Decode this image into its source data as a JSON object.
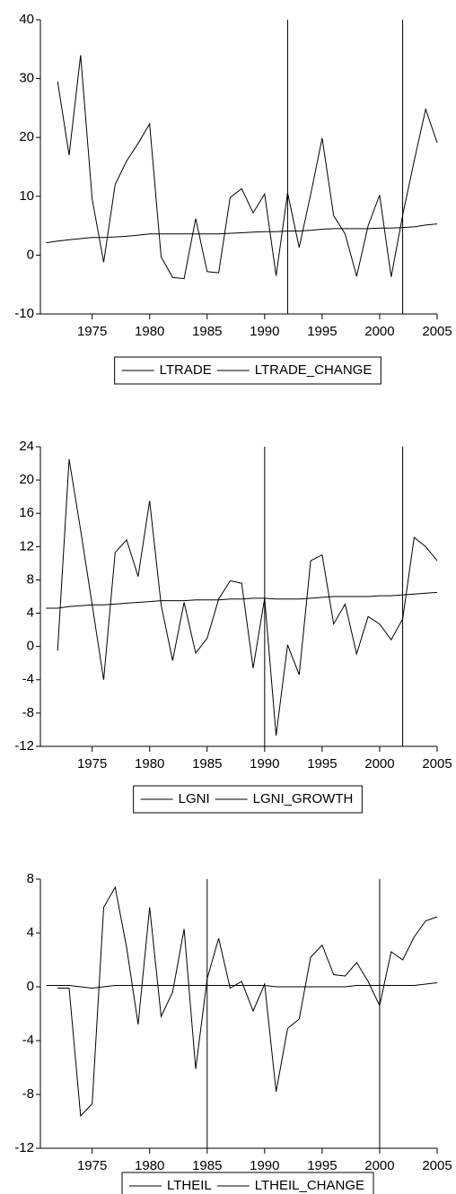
{
  "chart_data": [
    {
      "type": "line",
      "x": [
        1971,
        1972,
        1973,
        1974,
        1975,
        1976,
        1977,
        1978,
        1979,
        1980,
        1981,
        1982,
        1983,
        1984,
        1985,
        1986,
        1987,
        1988,
        1989,
        1990,
        1991,
        1992,
        1993,
        1994,
        1995,
        1996,
        1997,
        1998,
        1999,
        2000,
        2001,
        2002,
        2003,
        2004,
        2005
      ],
      "series": [
        {
          "name": "LTRADE",
          "color": "#000000",
          "values": [
            2.1,
            2.4,
            2.6,
            2.8,
            3.0,
            3.0,
            3.1,
            3.2,
            3.4,
            3.6,
            3.6,
            3.6,
            3.6,
            3.6,
            3.6,
            3.6,
            3.7,
            3.8,
            3.9,
            4.0,
            4.0,
            4.1,
            4.1,
            4.2,
            4.4,
            4.5,
            4.5,
            4.5,
            4.5,
            4.6,
            4.6,
            4.7,
            4.8,
            5.1,
            5.3
          ]
        },
        {
          "name": "LTRADE_CHANGE",
          "color": "#000000",
          "values": [
            null,
            29.5,
            17,
            34,
            9.5,
            -1.2,
            12,
            16,
            19,
            22.3,
            -0.3,
            -3.8,
            -4,
            6.2,
            -2.8,
            -3,
            9.8,
            11.3,
            7.2,
            10.4,
            -3.5,
            10.6,
            1.3,
            10.3,
            19.9,
            6.7,
            3.6,
            -3.6,
            5,
            10.2,
            -3.7,
            6.8,
            16,
            24.8,
            19.1
          ]
        }
      ],
      "xlim": [
        1970.5,
        2005
      ],
      "xticks": [
        1975,
        1980,
        1985,
        1990,
        1995,
        2000,
        2005
      ],
      "ylim": [
        -10,
        40
      ],
      "yticks": [
        -10,
        0,
        10,
        20,
        30,
        40
      ],
      "vlines": [
        1992,
        2002
      ]
    },
    {
      "type": "line",
      "x": [
        1971,
        1972,
        1973,
        1974,
        1975,
        1976,
        1977,
        1978,
        1979,
        1980,
        1981,
        1982,
        1983,
        1984,
        1985,
        1986,
        1987,
        1988,
        1989,
        1990,
        1991,
        1992,
        1993,
        1994,
        1995,
        1996,
        1997,
        1998,
        1999,
        2000,
        2001,
        2002,
        2003,
        2004,
        2005
      ],
      "series": [
        {
          "name": "LGNI",
          "color": "#000000",
          "values": [
            4.6,
            4.6,
            4.8,
            4.9,
            5.0,
            5.0,
            5.1,
            5.2,
            5.3,
            5.4,
            5.5,
            5.5,
            5.5,
            5.6,
            5.6,
            5.6,
            5.7,
            5.7,
            5.8,
            5.8,
            5.7,
            5.7,
            5.7,
            5.8,
            5.9,
            6.0,
            6.0,
            6.0,
            6.0,
            6.1,
            6.1,
            6.2,
            6.3,
            6.4,
            6.5
          ]
        },
        {
          "name": "LGNI_GROWTH",
          "color": "#000000",
          "values": [
            null,
            -0.5,
            22.5,
            14,
            5,
            -4,
            11.3,
            12.8,
            8.4,
            17.5,
            5,
            -1.7,
            5.3,
            -0.8,
            1,
            5.7,
            7.9,
            7.6,
            -2.6,
            5.8,
            -10.7,
            0.2,
            -3.4,
            10.3,
            11,
            2.7,
            5.1,
            -0.9,
            3.6,
            2.7,
            0.8,
            3.3,
            13.1,
            12,
            10.3
          ]
        }
      ],
      "xlim": [
        1970.5,
        2005
      ],
      "xticks": [
        1975,
        1980,
        1985,
        1990,
        1995,
        2000,
        2005
      ],
      "ylim": [
        -12,
        24
      ],
      "yticks": [
        -12,
        -8,
        -4,
        0,
        4,
        8,
        12,
        16,
        20,
        24
      ],
      "vlines": [
        1990,
        2002
      ]
    },
    {
      "type": "line",
      "x": [
        1971,
        1972,
        1973,
        1974,
        1975,
        1976,
        1977,
        1978,
        1979,
        1980,
        1981,
        1982,
        1983,
        1984,
        1985,
        1986,
        1987,
        1988,
        1989,
        1990,
        1991,
        1992,
        1993,
        1994,
        1995,
        1996,
        1997,
        1998,
        1999,
        2000,
        2001,
        2002,
        2003,
        2004,
        2005
      ],
      "series": [
        {
          "name": "LTHEIL",
          "color": "#000000",
          "values": [
            0.1,
            0.1,
            0.1,
            0,
            -0.1,
            0,
            0.1,
            0.1,
            0.1,
            0.1,
            0.1,
            0.1,
            0.1,
            0.1,
            0.1,
            0.1,
            0.1,
            0.1,
            0.1,
            0.1,
            0,
            0,
            0,
            0,
            0,
            0,
            0,
            0.1,
            0.1,
            0.1,
            0.1,
            0.1,
            0.1,
            0.2,
            0.3
          ]
        },
        {
          "name": "LTHEIL_CHANGE",
          "color": "#000000",
          "values": [
            null,
            -0.1,
            -0.1,
            -9.6,
            -8.7,
            5.9,
            7.4,
            2.9,
            -2.8,
            5.9,
            -2.2,
            -0.4,
            4.3,
            -6.1,
            0.6,
            3.6,
            -0.1,
            0.4,
            -1.8,
            0.2,
            -7.8,
            -3.1,
            -2.4,
            2.2,
            3.1,
            0.9,
            0.8,
            1.8,
            0.4,
            -1.4,
            2.6,
            2,
            3.7,
            4.9,
            5.2
          ]
        }
      ],
      "xlim": [
        1970.5,
        2005
      ],
      "xticks": [
        1975,
        1980,
        1985,
        1990,
        1995,
        2000,
        2005
      ],
      "ylim": [
        -12,
        8
      ],
      "yticks": [
        -12,
        -8,
        -4,
        0,
        4,
        8
      ],
      "vlines": [
        1985,
        2000
      ]
    }
  ]
}
